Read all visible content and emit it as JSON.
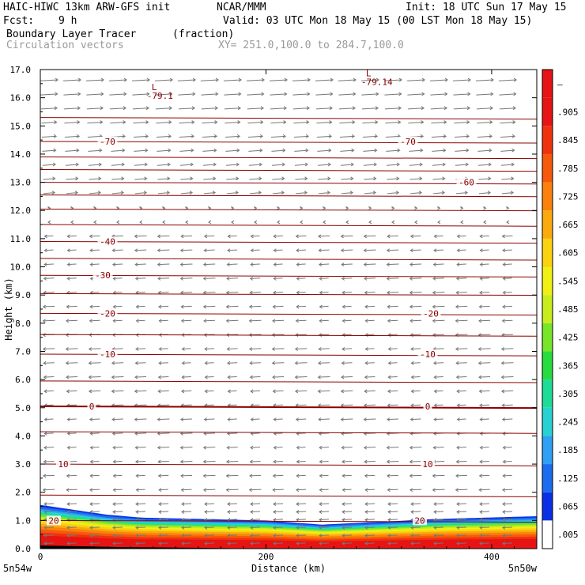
{
  "header": {
    "line1_left": "HAIC-HIWC 13km ARW-GFS init",
    "line1_mid": "NCAR/MMM",
    "line1_right": "Init: 18 UTC Sun 17 May 15",
    "fcst_label": "Fcst:",
    "fcst_value": "9 h",
    "valid": "Valid: 03 UTC Mon 18 May 15 (00 LST Mon 18 May 15)",
    "field_name": "Boundary Layer Tracer",
    "field_units": "(fraction)",
    "vectors_label": "Circulation vectors",
    "xsec_label": "XY= 251.0,100.0 to 284.7,100.0"
  },
  "chart_data": {
    "type": "heatmap",
    "title": "Boundary Layer Tracer",
    "xlabel": "Distance (km)",
    "ylabel": "Height (km)",
    "xlim": [
      0,
      440
    ],
    "ylim": [
      0,
      17
    ],
    "x_ticks": [
      0,
      200,
      400
    ],
    "y_ticks": [
      "0.0",
      "1.0",
      "2.0",
      "3.0",
      "4.0",
      "5.0",
      "6.0",
      "7.0",
      "8.0",
      "9.0",
      "10.0",
      "11.0",
      "12.0",
      "13.0",
      "14.0",
      "15.0",
      "16.0",
      "17.0"
    ],
    "x_endpoints": {
      "left": "5n54w",
      "right": "5n50w"
    },
    "colorbar": {
      "labels": [
        ".005",
        ".065",
        ".125",
        ".185",
        ".245",
        ".305",
        ".365",
        ".425",
        ".485",
        ".545",
        ".605",
        ".665",
        ".725",
        ".785",
        ".845",
        ".905",
        "–"
      ],
      "colors": [
        "#ffffff",
        "#0a30e6",
        "#1c6cf0",
        "#30a0f4",
        "#28d2d2",
        "#1edc98",
        "#28dc40",
        "#78e628",
        "#c8ec1e",
        "#f0f014",
        "#fad210",
        "#faaa0e",
        "#fa820c",
        "#f55a0c",
        "#ef320e",
        "#e61414",
        "#e61414"
      ]
    },
    "temperature_contours": {
      "units": "°C",
      "levels": [
        {
          "value": 20,
          "label": "20",
          "height_km": 1.0
        },
        {
          "value": 10,
          "label": "10",
          "height_km": 3.0
        },
        {
          "value": 0,
          "label": "0",
          "height_km": 5.05
        },
        {
          "value": -10,
          "label": "-10",
          "height_km": 6.9
        },
        {
          "value": -20,
          "label": "-20",
          "height_km": 8.35
        },
        {
          "value": -30,
          "label": "-30",
          "height_km": 9.7
        },
        {
          "value": -40,
          "label": "-40",
          "height_km": 10.9
        },
        {
          "value": -60,
          "label": "-60",
          "height_km": 13.0
        },
        {
          "value": -70,
          "label": "-70",
          "height_km": 14.45
        }
      ],
      "minima": [
        {
          "symbol": "L",
          "label": "-79.1",
          "x_km": 100,
          "height_km": 16.1
        },
        {
          "symbol": "L",
          "label": "-79.14",
          "x_km": 290,
          "height_km": 16.6
        }
      ]
    },
    "tracer_layer": {
      "description": "tracer fraction near 1.0 (red) below ~0.7 km, blue edge up to ~1.6 km on the left",
      "top_height_km": [
        [
          0,
          1.55
        ],
        [
          60,
          1.2
        ],
        [
          90,
          1.1
        ],
        [
          200,
          1.0
        ],
        [
          250,
          0.85
        ],
        [
          300,
          0.95
        ],
        [
          350,
          1.05
        ],
        [
          440,
          1.15
        ]
      ]
    },
    "wind_vectors": {
      "upper_level_direction": "eastward (above ~12 km)",
      "lower_level_direction": "westward (below ~11 km)"
    }
  }
}
